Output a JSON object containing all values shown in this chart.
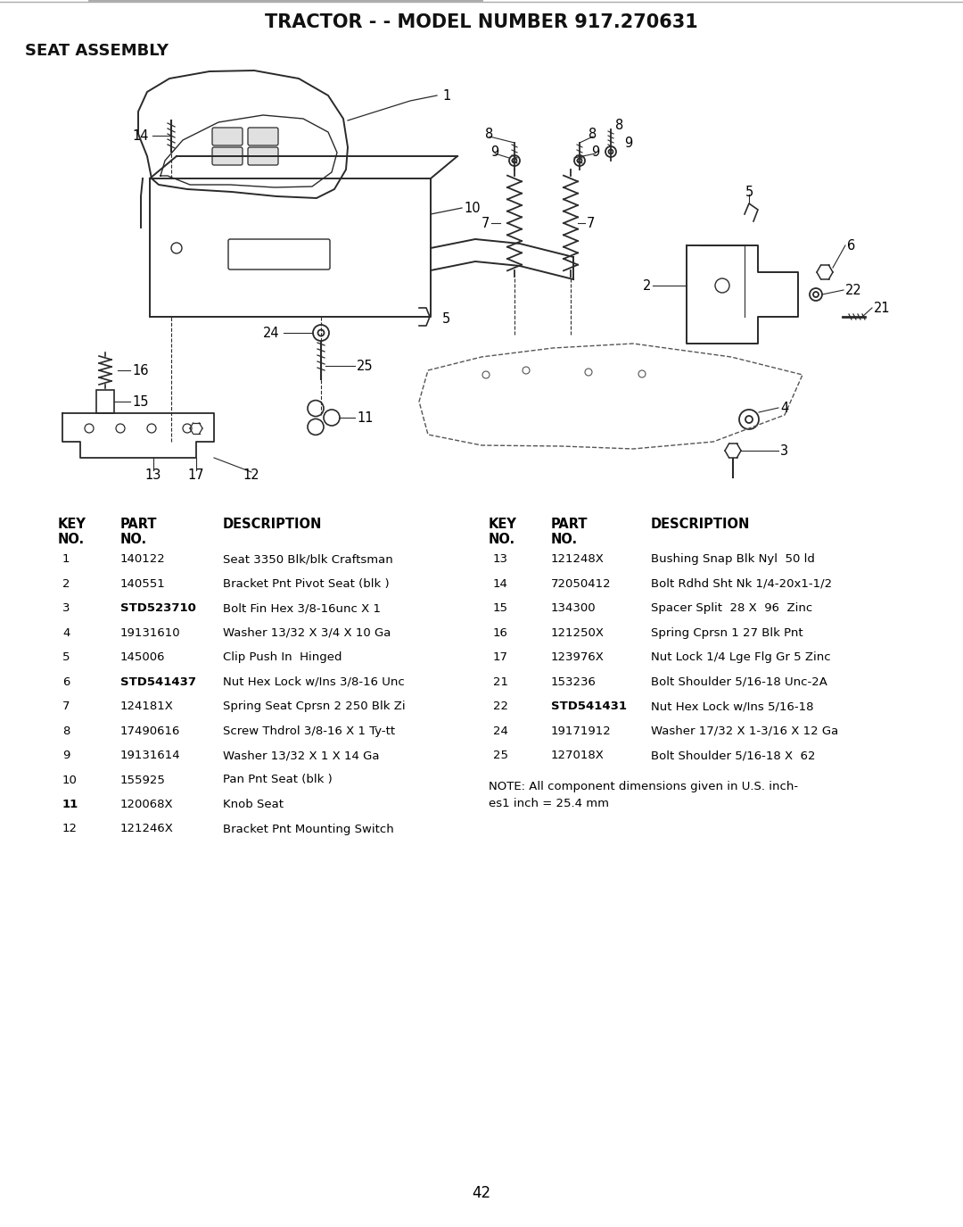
{
  "title": "TRACTOR - - MODEL NUMBER 917.270631",
  "subtitle": "SEAT ASSEMBLY",
  "page_number": "42",
  "background_color": "#ffffff",
  "table_left": {
    "rows": [
      [
        "1",
        "140122",
        "Seat 3350 Blk/blk Craftsman"
      ],
      [
        "2",
        "140551",
        "Bracket Pnt Pivot Seat (blk )"
      ],
      [
        "3",
        "STD523710",
        "Bolt Fin Hex 3/8-16unc X 1"
      ],
      [
        "4",
        "19131610",
        "Washer 13/32 X 3/4 X 10 Ga"
      ],
      [
        "5",
        "145006",
        "Clip Push In  Hinged"
      ],
      [
        "6",
        "STD541437",
        "Nut Hex Lock w/Ins 3/8-16 Unc"
      ],
      [
        "7",
        "124181X",
        "Spring Seat Cprsn 2 250 Blk Zi"
      ],
      [
        "8",
        "17490616",
        "Screw Thdrol 3/8-16 X 1 Ty-tt"
      ],
      [
        "9",
        "19131614",
        "Washer 13/32 X 1 X 14 Ga"
      ],
      [
        "10",
        "155925",
        "Pan Pnt Seat (blk )"
      ],
      [
        "11",
        "120068X",
        "Knob Seat"
      ],
      [
        "12",
        "121246X",
        "Bracket Pnt Mounting Switch"
      ]
    ]
  },
  "table_right": {
    "rows": [
      [
        "13",
        "121248X",
        "Bushing Snap Blk Nyl  50 ld"
      ],
      [
        "14",
        "72050412",
        "Bolt Rdhd Sht Nk 1/4-20x1-1/2"
      ],
      [
        "15",
        "134300",
        "Spacer Split  28 X  96  Zinc"
      ],
      [
        "16",
        "121250X",
        "Spring Cprsn 1 27 Blk Pnt"
      ],
      [
        "17",
        "123976X",
        "Nut Lock 1/4 Lge Flg Gr 5 Zinc"
      ],
      [
        "21",
        "153236",
        "Bolt Shoulder 5/16-18 Unc-2A"
      ],
      [
        "22",
        "STD541431",
        "Nut Hex Lock w/Ins 5/16-18"
      ],
      [
        "24",
        "19171912",
        "Washer 17/32 X 1-3/16 X 12 Ga"
      ],
      [
        "25",
        "127018X",
        "Bolt Shoulder 5/16-18 X  62"
      ]
    ]
  },
  "note_line1": "NOTE: All component dimensions given in U.S. inch-",
  "note_line2": "es1 inch = 25.4 mm"
}
